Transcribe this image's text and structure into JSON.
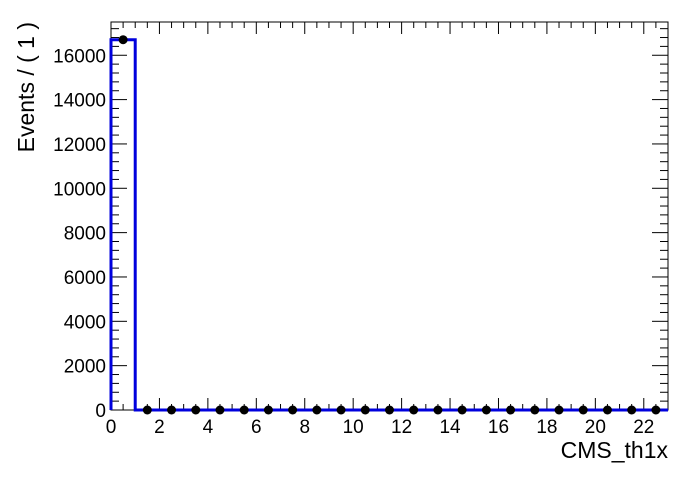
{
  "chart_data": {
    "type": "histogram",
    "xlabel": "CMS_th1x",
    "ylabel": "Events / ( 1 )",
    "xlim": [
      0,
      23
    ],
    "ylim": [
      0,
      17500
    ],
    "x_ticks": [
      0,
      2,
      4,
      6,
      8,
      10,
      12,
      14,
      16,
      18,
      20,
      22
    ],
    "y_ticks": [
      0,
      2000,
      4000,
      6000,
      8000,
      10000,
      12000,
      14000,
      16000
    ],
    "x_minor_step": 0.5,
    "y_minor_step": 400,
    "grid": false,
    "colors": {
      "curve": "#0000dd",
      "points": "#000000",
      "axes": "#000000"
    },
    "series": [
      {
        "type": "line",
        "bin_edges": [
          0,
          1,
          2,
          3,
          4,
          5,
          6,
          7,
          8,
          9,
          10,
          11,
          12,
          13,
          14,
          15,
          16,
          17,
          18,
          19,
          20,
          21,
          22,
          23
        ],
        "values": [
          16700,
          0,
          0,
          0,
          0,
          0,
          0,
          0,
          0,
          0,
          0,
          0,
          0,
          0,
          0,
          0,
          0,
          0,
          0,
          0,
          0,
          0,
          0
        ]
      },
      {
        "type": "scatter",
        "x": [
          0.5,
          1.5,
          2.5,
          3.5,
          4.5,
          5.5,
          6.5,
          7.5,
          8.5,
          9.5,
          10.5,
          11.5,
          12.5,
          13.5,
          14.5,
          15.5,
          16.5,
          17.5,
          18.5,
          19.5,
          20.5,
          21.5,
          22.5
        ],
        "y": [
          16700,
          0,
          0,
          0,
          0,
          0,
          0,
          0,
          0,
          0,
          0,
          0,
          0,
          0,
          0,
          0,
          0,
          0,
          0,
          0,
          0,
          0,
          0
        ]
      }
    ]
  }
}
